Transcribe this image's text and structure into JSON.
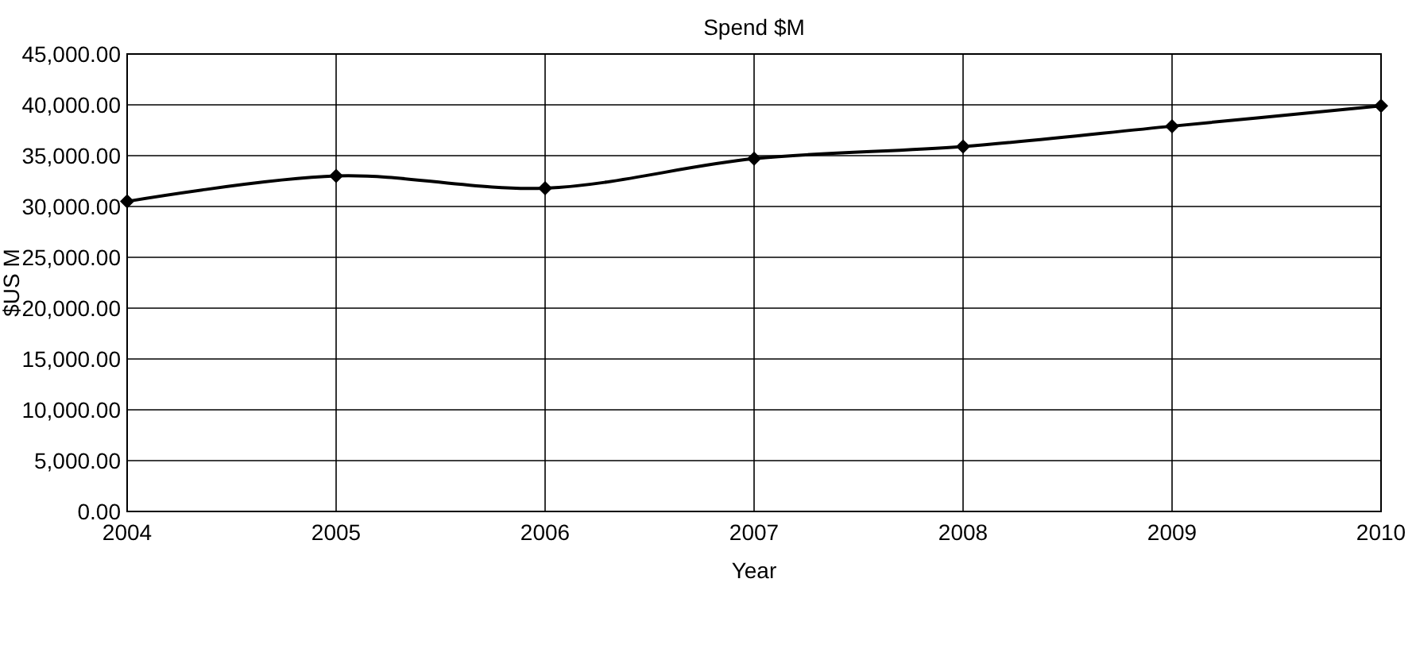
{
  "chart_data": {
    "type": "line",
    "title": "Spend $M",
    "xlabel": "Year",
    "ylabel": "$US M",
    "x": [
      2004,
      2005,
      2006,
      2007,
      2008,
      2009,
      2010
    ],
    "series": [
      {
        "color": "#000000",
        "values": [
          30500,
          33000,
          31800,
          34700,
          35900,
          37900,
          39900
        ]
      }
    ],
    "xlim": [
      2004,
      2010
    ],
    "xticks": [
      2004,
      2005,
      2006,
      2007,
      2008,
      2009,
      2010
    ],
    "ylim": [
      0,
      45000
    ],
    "yticks": [
      {
        "value": 0,
        "label": "0.00"
      },
      {
        "value": 5000,
        "label": "5,000.00"
      },
      {
        "value": 10000,
        "label": "10,000.00"
      },
      {
        "value": 15000,
        "label": "15,000.00"
      },
      {
        "value": 20000,
        "label": "20,000.00"
      },
      {
        "value": 25000,
        "label": "25,000.00"
      },
      {
        "value": 30000,
        "label": "30,000.00"
      },
      {
        "value": 35000,
        "label": "35,000.00"
      },
      {
        "value": 40000,
        "label": "40,000.00"
      },
      {
        "value": 45000,
        "label": "45,000.00"
      }
    ],
    "grid": true,
    "marker": "diamond",
    "line_style": "solid"
  }
}
